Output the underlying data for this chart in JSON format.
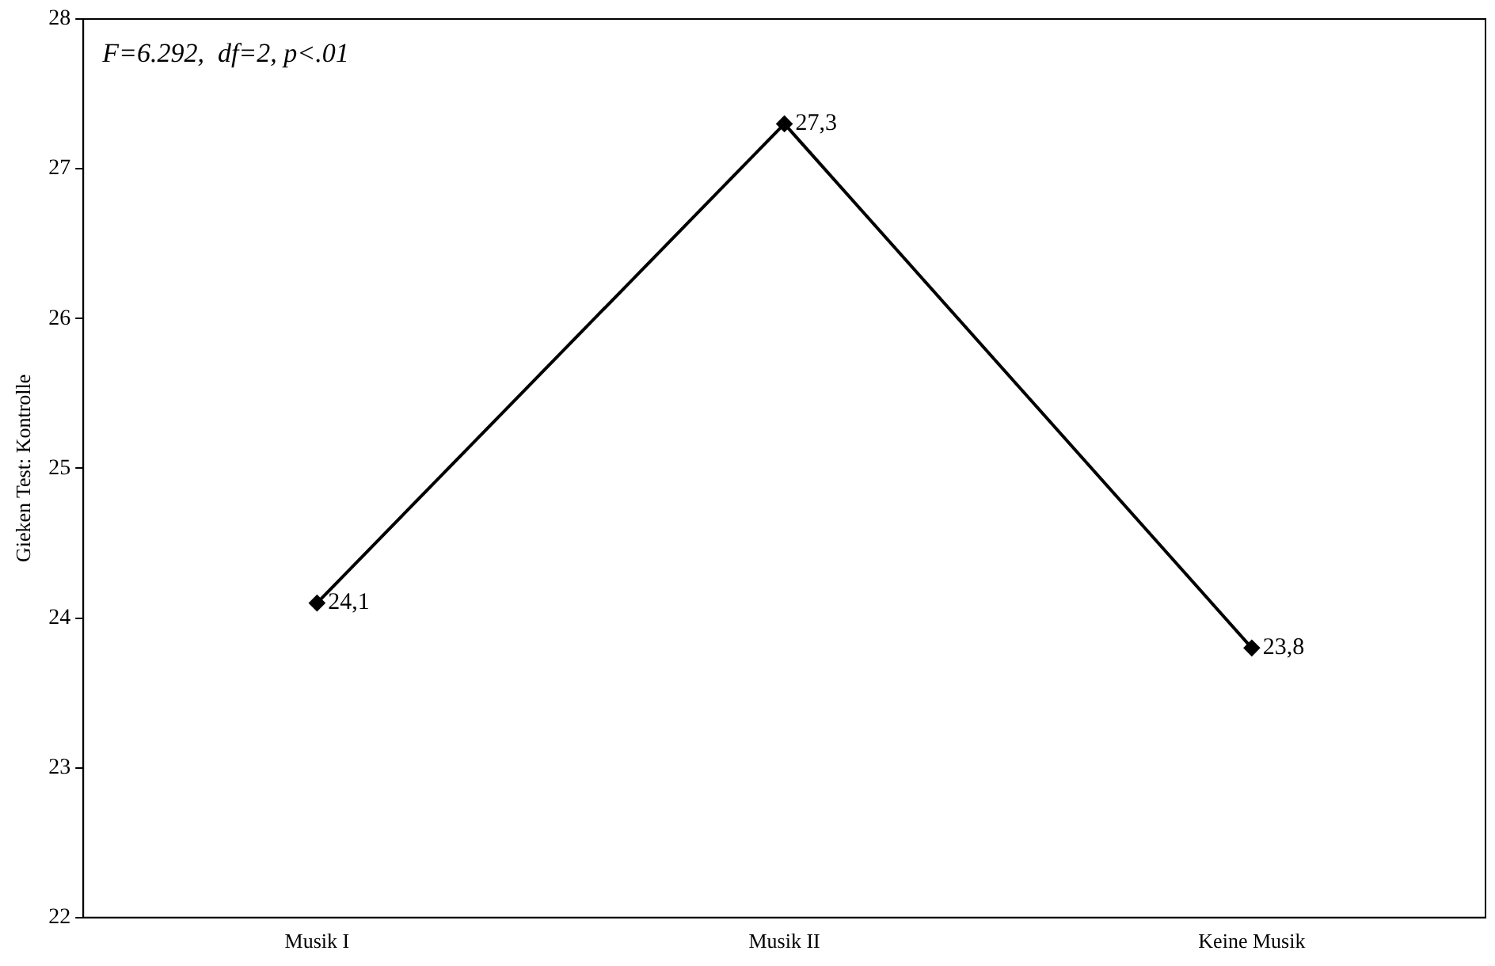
{
  "chart_data": {
    "type": "line",
    "ylabel": "Gieken Test: Kontrolle",
    "annotations": [
      "F=6.292,  df=2, p<.01"
    ],
    "categories": [
      "Musik I",
      "Musik II",
      "Keine Musik"
    ],
    "series": [
      {
        "color": "#000000",
        "values": [
          24.1,
          27.3,
          23.8
        ],
        "value_labels": [
          "24,1",
          "27,3",
          "23,8"
        ]
      }
    ],
    "ylim": [
      22,
      28
    ],
    "yticks": [
      22,
      23,
      24,
      25,
      26,
      27,
      28
    ],
    "grid": false,
    "legend": false,
    "marker": "diamond",
    "line_style": "solid"
  }
}
